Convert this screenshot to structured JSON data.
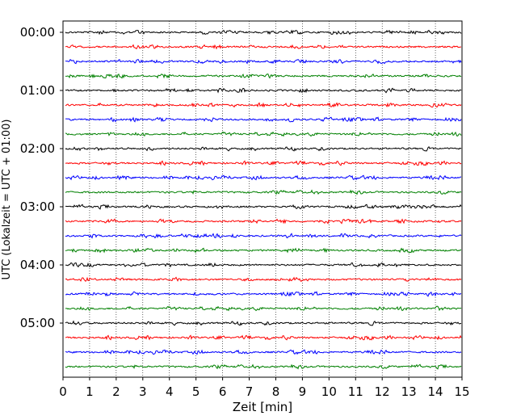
{
  "chart_data": {
    "type": "line",
    "xlabel": "Zeit  [min]",
    "ylabel": "UTC (Lokalzeit = UTC + 01:00)",
    "xlim": [
      0,
      15
    ],
    "x_ticks": [
      "0",
      "1",
      "2",
      "3",
      "4",
      "5",
      "6",
      "7",
      "8",
      "9",
      "10",
      "11",
      "12",
      "13",
      "14",
      "15"
    ],
    "y_ticks": [
      "00:00",
      "01:00",
      "02:00",
      "03:00",
      "04:00",
      "05:00"
    ],
    "grid": "vertical dotted lines at each minute",
    "trace_count": 24,
    "trace_interval_minutes": 15,
    "trace_colors": [
      "#000000",
      "#ff0000",
      "#0000ff",
      "#008000"
    ]
  }
}
